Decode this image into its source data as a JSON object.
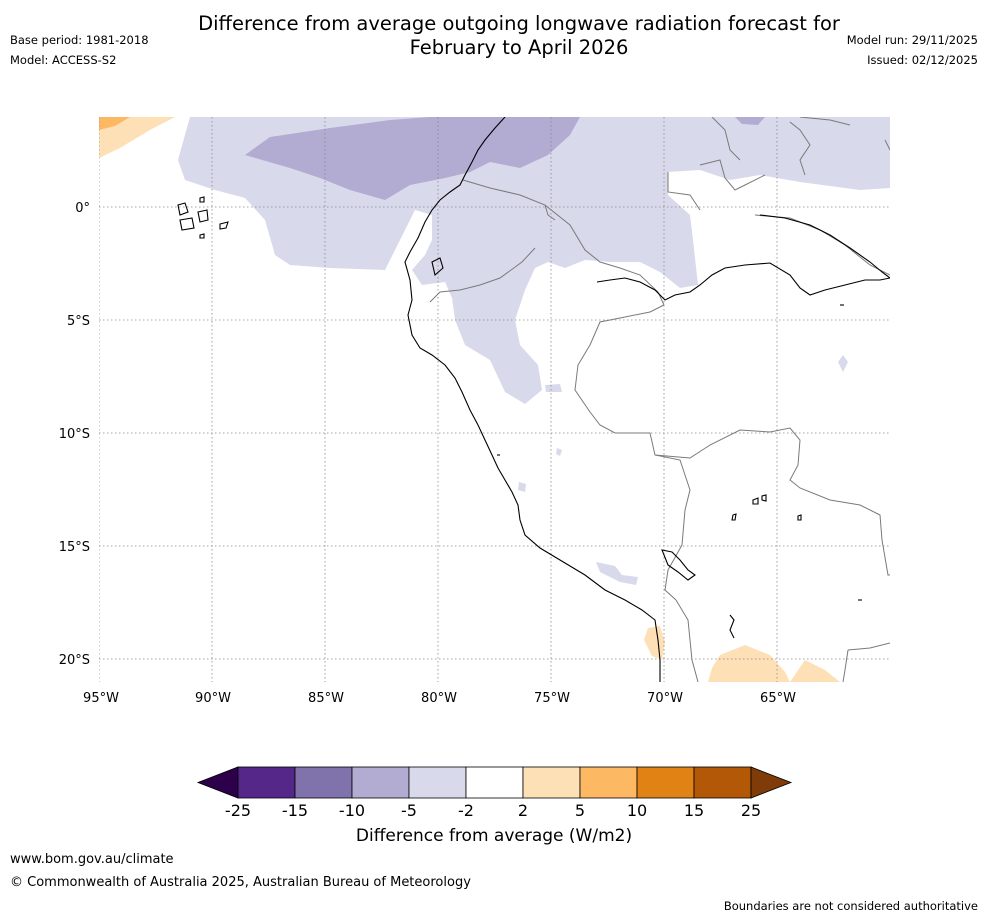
{
  "title": {
    "line1": "Difference from average outgoing longwave radiation forecast for",
    "line2": "February to April 2026"
  },
  "info_left": {
    "base_period": "Base period: 1981-2018",
    "model": "Model: ACCESS-S2"
  },
  "info_right": {
    "model_run": "Model run: 29/11/2025",
    "issued": "Issued: 02/12/2025"
  },
  "map": {
    "latitude_labels": [
      "0°",
      "5°S",
      "10°S",
      "15°S",
      "20°S"
    ],
    "longitude_labels": [
      "95°W",
      "90°W",
      "85°W",
      "80°W",
      "75°W",
      "70°W",
      "65°W"
    ]
  },
  "colorbar": {
    "title": "Difference from average (W/m2)",
    "ticks": [
      "-25",
      "-15",
      "-10",
      "-5",
      "-2",
      "2",
      "5",
      "10",
      "15",
      "25"
    ],
    "colors": {
      "below_min": "#2d004b",
      "bins": [
        "#542788",
        "#8073ac",
        "#b2abd2",
        "#d8daeb",
        "#ffffff",
        "#fee0b6",
        "#fdb863",
        "#e08214",
        "#b35806"
      ],
      "above_max": "#7f3b08"
    }
  },
  "footer": {
    "url": "www.bom.gov.au/climate",
    "copyright": "© Commonwealth of Australia 2025, Australian Bureau of Meteorology",
    "disclaimer": "Boundaries are not considered authoritative"
  }
}
